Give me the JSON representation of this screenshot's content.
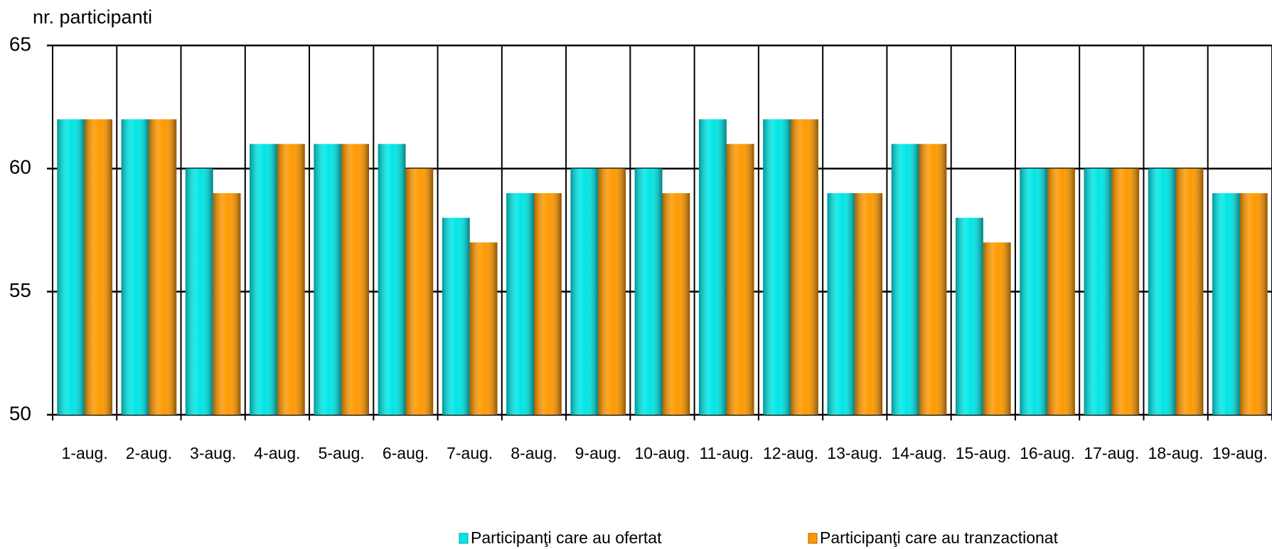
{
  "chart_data": {
    "type": "bar",
    "y_label": "nr. participanti",
    "categories": [
      "1-aug.",
      "2-aug.",
      "3-aug.",
      "4-aug.",
      "5-aug.",
      "6-aug.",
      "7-aug.",
      "8-aug.",
      "9-aug.",
      "10-aug.",
      "11-aug.",
      "12-aug.",
      "13-aug.",
      "14-aug.",
      "15-aug.",
      "16-aug.",
      "17-aug.",
      "18-aug.",
      "19-aug."
    ],
    "series": [
      {
        "name": "Participanţi care au ofertat",
        "color": "#00e6e6",
        "values": [
          62,
          62,
          60,
          61,
          61,
          61,
          58,
          59,
          60,
          60,
          62,
          62,
          59,
          61,
          58,
          60,
          60,
          60,
          59
        ]
      },
      {
        "name": "Participanţi care au tranzactionat",
        "color": "#ff9900",
        "values": [
          62,
          62,
          59,
          61,
          61,
          60,
          57,
          59,
          60,
          59,
          61,
          62,
          59,
          61,
          57,
          60,
          60,
          60,
          59
        ]
      }
    ],
    "ylim": [
      50,
      65
    ],
    "yticks": [
      50,
      55,
      60,
      65
    ],
    "grid": true
  }
}
